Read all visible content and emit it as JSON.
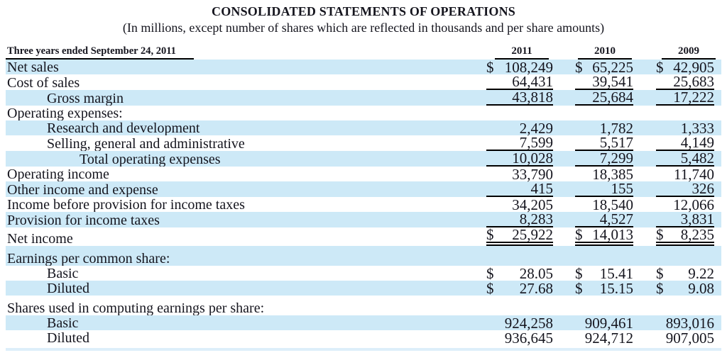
{
  "header": {
    "title": "CONSOLIDATED STATEMENTS OF OPERATIONS",
    "subtitle": "(In millions, except number of shares which are reflected in thousands and per share amounts)"
  },
  "table": {
    "period_header": "Three years ended September 24, 2011",
    "years": [
      "2011",
      "2010",
      "2009"
    ],
    "rows": [
      {
        "label": "Net sales",
        "indent": 0,
        "shade": "blue",
        "dollar": true,
        "rule": "none",
        "values": [
          "108,249",
          "65,225",
          "42,905"
        ]
      },
      {
        "label": "Cost of sales",
        "indent": 0,
        "shade": "white",
        "dollar": false,
        "rule": "single",
        "values": [
          "64,431",
          "39,541",
          "25,683"
        ]
      },
      {
        "label": "Gross margin",
        "indent": 1,
        "shade": "blue",
        "dollar": false,
        "rule": "single",
        "values": [
          "43,818",
          "25,684",
          "17,222"
        ]
      },
      {
        "label": "Operating expenses:",
        "indent": 0,
        "shade": "white",
        "dollar": false,
        "rule": "none",
        "values": null
      },
      {
        "label": "Research and development",
        "indent": 1,
        "shade": "blue",
        "dollar": false,
        "rule": "none",
        "values": [
          "2,429",
          "1,782",
          "1,333"
        ]
      },
      {
        "label": "Selling, general and administrative",
        "indent": 1,
        "shade": "white",
        "dollar": false,
        "rule": "single",
        "values": [
          "7,599",
          "5,517",
          "4,149"
        ]
      },
      {
        "label": "Total operating expenses",
        "indent": 2,
        "shade": "blue",
        "dollar": false,
        "rule": "single",
        "values": [
          "10,028",
          "7,299",
          "5,482"
        ]
      },
      {
        "label": "Operating income",
        "indent": 0,
        "shade": "white",
        "dollar": false,
        "rule": "none",
        "values": [
          "33,790",
          "18,385",
          "11,740"
        ]
      },
      {
        "label": "Other income and expense",
        "indent": 0,
        "shade": "blue",
        "dollar": false,
        "rule": "single",
        "values": [
          "415",
          "155",
          "326"
        ]
      },
      {
        "label": "Income before provision for income taxes",
        "indent": 0,
        "shade": "white",
        "dollar": false,
        "rule": "none",
        "values": [
          "34,205",
          "18,540",
          "12,066"
        ]
      },
      {
        "label": "Provision for income taxes",
        "indent": 0,
        "shade": "blue",
        "dollar": false,
        "rule": "single",
        "values": [
          "8,283",
          "4,527",
          "3,831"
        ]
      },
      {
        "label": "Net income",
        "indent": 0,
        "shade": "white",
        "dollar": true,
        "rule": "double",
        "values": [
          "25,922",
          "14,013",
          "8,235"
        ]
      },
      {
        "label": "Earnings per common share:",
        "indent": 0,
        "shade": "blue",
        "dollar": false,
        "rule": "none",
        "values": null,
        "section_gap": true
      },
      {
        "label": "Basic",
        "indent": 1,
        "shade": "white",
        "dollar": true,
        "rule": "none",
        "values": [
          "28.05",
          "15.41",
          "9.22"
        ]
      },
      {
        "label": "Diluted",
        "indent": 1,
        "shade": "blue",
        "dollar": true,
        "rule": "none",
        "values": [
          "27.68",
          "15.15",
          "9.08"
        ]
      },
      {
        "label": "Shares used in computing earnings per share:",
        "indent": 0,
        "shade": "white",
        "dollar": false,
        "rule": "none",
        "values": null,
        "section_gap": true
      },
      {
        "label": "Basic",
        "indent": 1,
        "shade": "blue",
        "dollar": false,
        "rule": "none",
        "values": [
          "924,258",
          "909,461",
          "893,016"
        ]
      },
      {
        "label": "Diluted",
        "indent": 1,
        "shade": "white",
        "dollar": false,
        "rule": "none",
        "values": [
          "936,645",
          "924,712",
          "907,005"
        ]
      }
    ]
  },
  "colors": {
    "row_highlight": "#cde9f7",
    "text": "#15151e",
    "rule": "#000000"
  }
}
